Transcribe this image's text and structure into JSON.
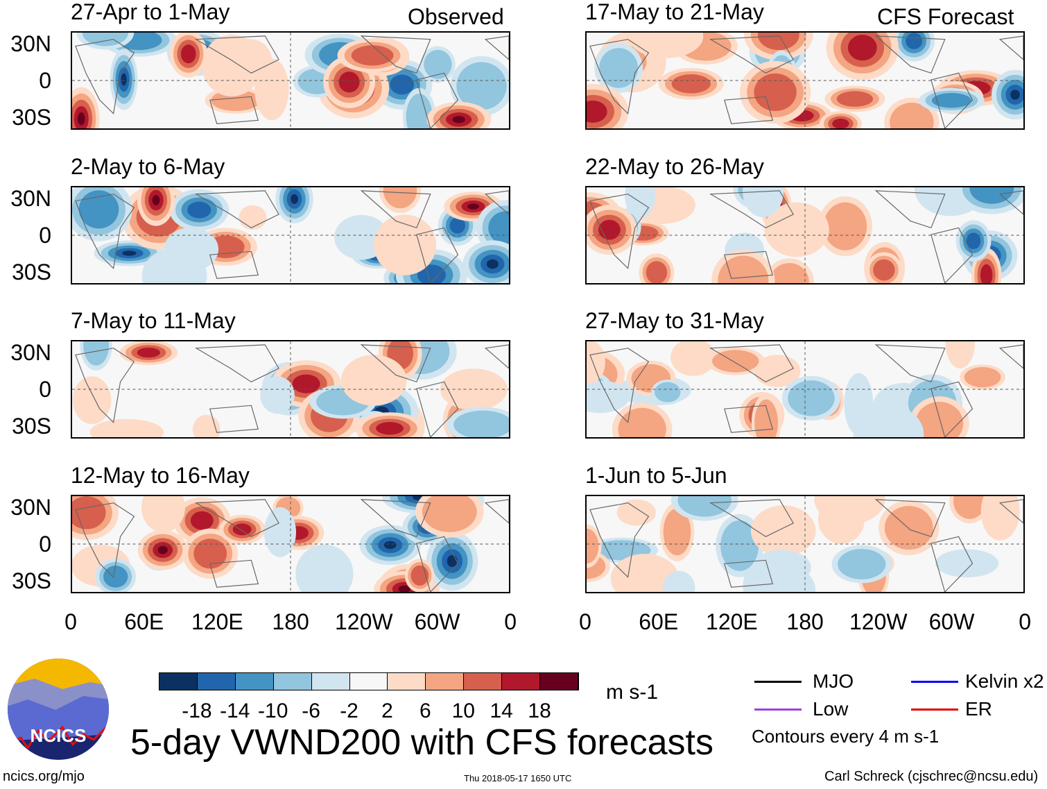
{
  "header": {
    "observed_label": "Observed",
    "forecast_label": "CFS Forecast"
  },
  "panels": {
    "observed": [
      {
        "title": "27-Apr to 1-May"
      },
      {
        "title": "2-May to 6-May"
      },
      {
        "title": "7-May to 11-May"
      },
      {
        "title": "12-May to 16-May"
      }
    ],
    "forecast": [
      {
        "title": "17-May to 21-May"
      },
      {
        "title": "22-May to 26-May"
      },
      {
        "title": "27-May to 31-May"
      },
      {
        "title": "1-Jun to 5-Jun"
      }
    ]
  },
  "axes": {
    "y_ticks": [
      "30N",
      "0",
      "30S"
    ],
    "x_ticks": [
      "0",
      "60E",
      "120E",
      "180",
      "120W",
      "60W",
      "0"
    ]
  },
  "colorbar": {
    "colors": [
      "#0b3162",
      "#2166ac",
      "#4393c3",
      "#92c5de",
      "#d1e5f0",
      "#f7f7f7",
      "#fddbc7",
      "#f4a582",
      "#d6604d",
      "#b2182b",
      "#67001f"
    ],
    "labels": [
      "-18",
      "-14",
      "-10",
      "-6",
      "-2",
      "2",
      "6",
      "10",
      "14",
      "18"
    ],
    "units": "m s-1"
  },
  "legend": {
    "items": [
      {
        "label": "MJO",
        "color": "#000000"
      },
      {
        "label": "Kelvin x2",
        "color": "#0000ff"
      },
      {
        "label": "Low",
        "color": "#a040e0"
      },
      {
        "label": "ER",
        "color": "#e00000"
      }
    ],
    "contours": "Contours every 4 m s-1"
  },
  "title": "5-day VWND200 with CFS forecasts",
  "logo_text": "NCICS",
  "footer": {
    "url": "ncics.org/mjo",
    "timestamp": "Thu 2018-05-17 1650 UTC",
    "author": "Carl Schreck (cjschrec@ncsu.edu)"
  }
}
